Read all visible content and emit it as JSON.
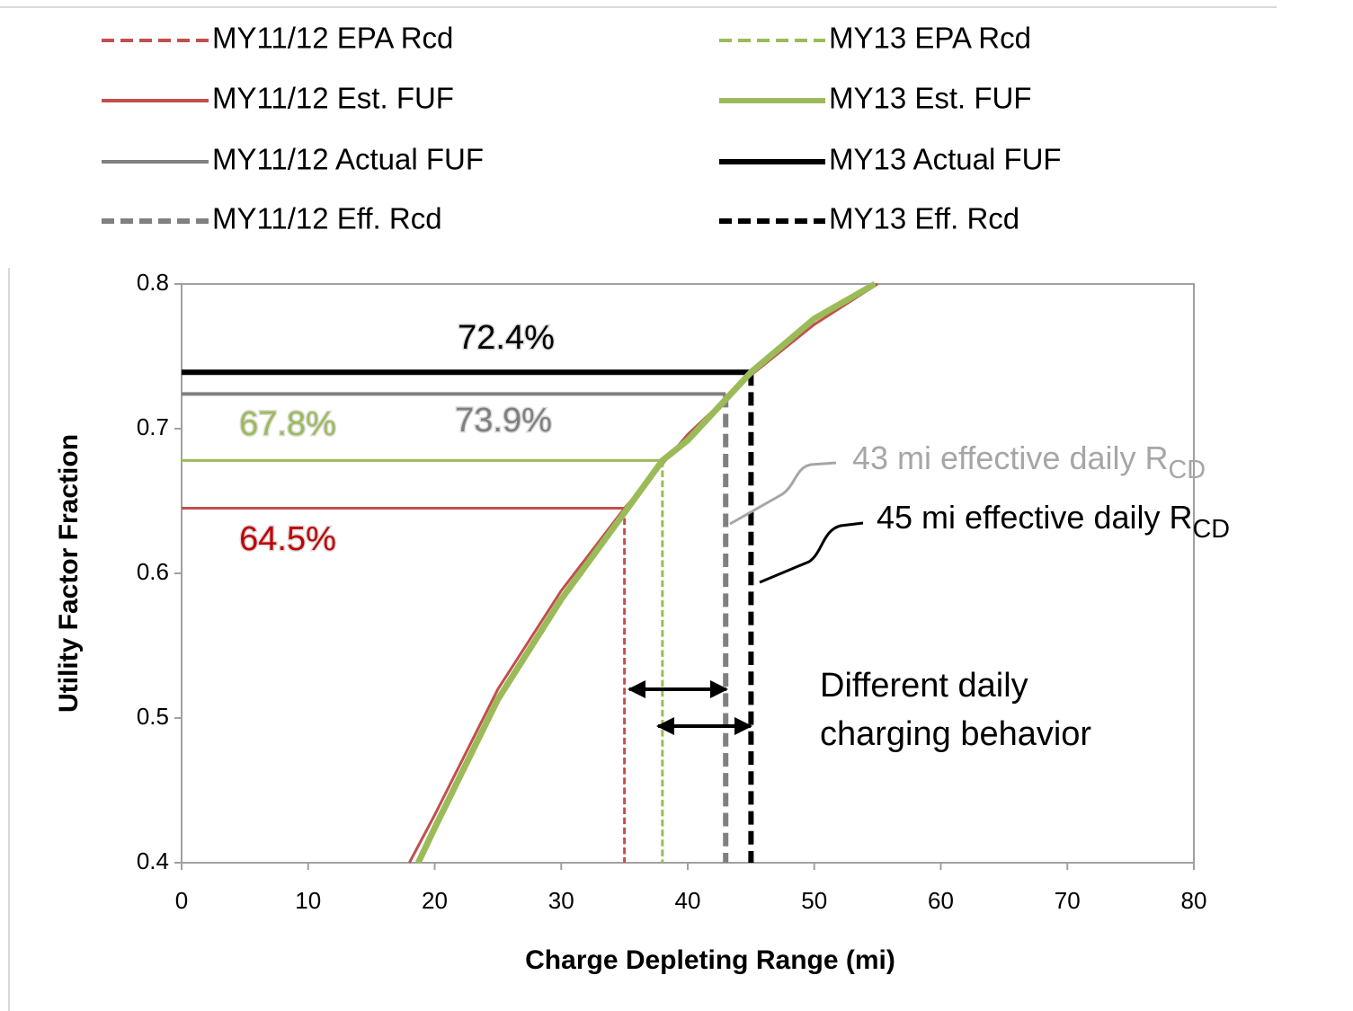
{
  "chart_data": {
    "type": "line",
    "xlabel": "Charge Depleting Range (mi)",
    "ylabel": "Utility Factor Fraction",
    "xlim": [
      0,
      80
    ],
    "xticks": [
      0,
      10,
      20,
      30,
      40,
      50,
      60,
      70,
      80
    ],
    "ylim": [
      0.4,
      0.8
    ],
    "yticks": [
      0.4,
      0.5,
      0.6,
      0.7,
      0.8
    ],
    "series": [
      {
        "name": "MY11/12 EPA Rcd",
        "color": "#c0504d",
        "style": "dashed",
        "width": 3,
        "x": [
          35,
          35
        ],
        "values": [
          0.645,
          0.4
        ]
      },
      {
        "name": "MY13 EPA Rcd",
        "color": "#9bbb59",
        "style": "dashed",
        "width": 3,
        "x": [
          38,
          38
        ],
        "values": [
          0.678,
          0.4
        ]
      },
      {
        "name": "MY11/12 Est. FUF",
        "color": "#c0504d",
        "style": "solid",
        "width": 3,
        "x": [
          18,
          20,
          25,
          30,
          35,
          40,
          45,
          50,
          55
        ],
        "values": [
          0.4,
          0.433,
          0.52,
          0.588,
          0.645,
          0.696,
          0.737,
          0.772,
          0.8
        ]
      },
      {
        "name": "MY13 Est. FUF",
        "color": "#9bbb59",
        "style": "solid",
        "width": 7,
        "x": [
          18.7,
          20,
          25,
          30,
          35,
          38,
          40,
          45,
          50,
          54.8
        ],
        "values": [
          0.4,
          0.424,
          0.513,
          0.582,
          0.642,
          0.678,
          0.692,
          0.739,
          0.776,
          0.8
        ]
      },
      {
        "name": "MY11/12 Actual FUF",
        "color": "#808080",
        "style": "solid",
        "width": 4,
        "x": [
          0,
          43
        ],
        "values": [
          0.724,
          0.724
        ]
      },
      {
        "name": "MY13 Actual FUF",
        "color": "#000000",
        "style": "solid",
        "width": 6,
        "x": [
          0,
          45
        ],
        "values": [
          0.739,
          0.739
        ]
      },
      {
        "name": "MY11/12 Eff. Rcd",
        "color": "#808080",
        "style": "dashed",
        "width": 6,
        "x": [
          43,
          43
        ],
        "values": [
          0.724,
          0.4
        ]
      },
      {
        "name": "MY13 Eff. Rcd",
        "color": "#000000",
        "style": "dashed",
        "width": 6,
        "x": [
          45,
          45
        ],
        "values": [
          0.739,
          0.4
        ]
      }
    ],
    "levels": [
      {
        "x": [
          0,
          35
        ],
        "y": 0.645,
        "color": "#c0504d"
      },
      {
        "x": [
          0,
          38
        ],
        "y": 0.678,
        "color": "#9bbb59"
      }
    ],
    "annotations": [
      {
        "text": "72.4%",
        "color": "#000000"
      },
      {
        "text": "73.9%",
        "color": "#808080"
      },
      {
        "text": "67.8%",
        "color": "#9bbb59"
      },
      {
        "text": "64.5%",
        "color": "#c00000"
      },
      {
        "text": "43 mi effective daily R",
        "sub": "CD",
        "color": "#a6a6a6"
      },
      {
        "text": "45 mi effective daily R",
        "sub": "CD",
        "color": "#000000"
      },
      {
        "lines": [
          "Different daily",
          "charging behavior"
        ],
        "color": "#000000"
      }
    ]
  }
}
